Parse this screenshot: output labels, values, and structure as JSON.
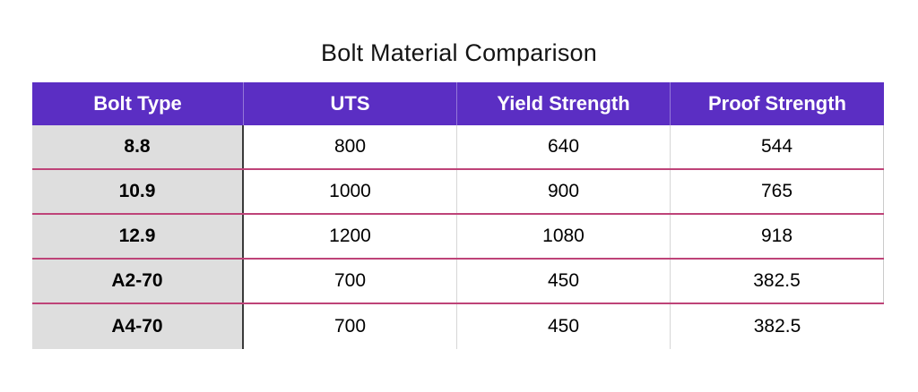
{
  "title": "Bolt Material Comparison",
  "chart_data": {
    "type": "table",
    "title": "Bolt Material Comparison",
    "columns": [
      "Bolt Type",
      "UTS",
      "Yield Strength",
      "Proof Strength"
    ],
    "rows": [
      [
        "8.8",
        800,
        640,
        544
      ],
      [
        "10.9",
        1000,
        900,
        765
      ],
      [
        "12.9",
        1200,
        1080,
        918
      ],
      [
        "A2-70",
        700,
        450,
        382.5
      ],
      [
        "A4-70",
        700,
        450,
        382.5
      ]
    ],
    "layout_hints": {
      "header_row": "purple background, white bold centered text",
      "first_column": "light gray background, bold black centered text",
      "row_separators": "pink horizontal rules between body rows",
      "bottom_border": "none"
    }
  },
  "colors": {
    "header_bg": "#5B2EC3",
    "header_text": "#FFFFFF",
    "row_label_bg": "#DEDEDE",
    "row_divider_pink": "#BE4378",
    "column_divider_dark": "#3A3A3A",
    "column_divider_light": "#D6D6D6",
    "body_text": "#000000",
    "page_bg": "#FFFFFF"
  }
}
